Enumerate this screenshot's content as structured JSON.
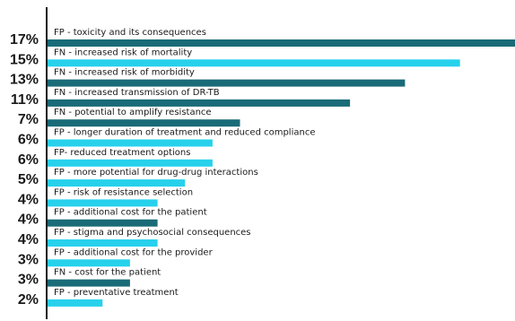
{
  "chart_data": {
    "type": "bar",
    "orientation": "horizontal",
    "xlim": [
      0,
      17
    ],
    "categories": [
      "FP - toxicity and its consequences",
      "FN - increased risk of mortality",
      "FN - increased risk of morbidity",
      "FN - increased transmission of DR-TB",
      "FN - potential to amplify resistance",
      "FP - longer duration of treatment and reduced compliance",
      "FP- reduced treatment options",
      "FP - more potential for drug-drug interactions",
      "FP - risk of resistance selection",
      "FP - additional cost for the patient",
      "FP - stigma and psychosocial consequences",
      "FP - additional cost for the provider",
      "FN - cost for the patient",
      "FP - preventative treatment"
    ],
    "values": [
      17,
      15,
      13,
      11,
      7,
      6,
      6,
      5,
      4,
      4,
      4,
      3,
      3,
      2
    ],
    "value_labels": [
      "17%",
      "15%",
      "13%",
      "11%",
      "7%",
      "6%",
      "6%",
      "5%",
      "4%",
      "4%",
      "4%",
      "3%",
      "3%",
      "2%"
    ],
    "bar_colors": [
      "#1a6b78",
      "#27d1ec",
      "#1a6b78",
      "#1a6b78",
      "#1a6b78",
      "#27d1ec",
      "#27d1ec",
      "#27d1ec",
      "#27d1ec",
      "#1a6b78",
      "#27d1ec",
      "#27d1ec",
      "#1a6b78",
      "#27d1ec"
    ],
    "title": "",
    "xlabel": "",
    "ylabel": "",
    "grid": false,
    "legend": "none"
  }
}
